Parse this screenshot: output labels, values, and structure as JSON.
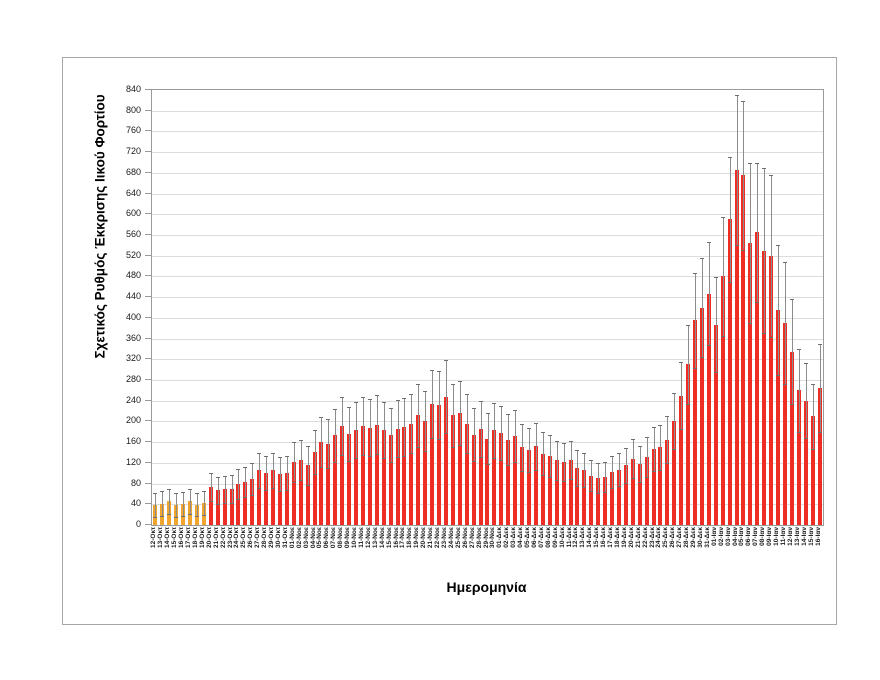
{
  "axis": {
    "y_title": "Σχετικός Ρυθμός Έκκρισης Ιικού Φορτίου",
    "x_title": "Ημερομηνία"
  },
  "colors": {
    "bar_red": "#ee2e24",
    "bar_orange": "#f0a52f",
    "error_bar": "#8c8c8c",
    "gridline": "#dcdcdc"
  },
  "chart_data": {
    "type": "bar",
    "title": "",
    "xlabel": "Ημερομηνία",
    "ylabel": "Σχετικός Ρυθμός Έκκρισης Ιικού Φορτίου",
    "ylim": [
      0,
      840
    ],
    "ytick_step": 40,
    "yticks": [
      0,
      40,
      80,
      120,
      160,
      200,
      240,
      280,
      320,
      360,
      400,
      440,
      480,
      520,
      560,
      600,
      640,
      680,
      720,
      760,
      800,
      840
    ],
    "grid": true,
    "legend": false,
    "orange_count": 8,
    "categories": [
      "12-Οκτ",
      "13-Οκτ",
      "14-Οκτ",
      "15-Οκτ",
      "16-Οκτ",
      "17-Οκτ",
      "18-Οκτ",
      "19-Οκτ",
      "20-Οκτ",
      "21-Οκτ",
      "22-Οκτ",
      "23-Οκτ",
      "24-Οκτ",
      "25-Οκτ",
      "26-Οκτ",
      "27-Οκτ",
      "28-Οκτ",
      "29-Οκτ",
      "30-Οκτ",
      "31-Οκτ",
      "01-Νοε",
      "02-Νοε",
      "03-Νοε",
      "04-Νοε",
      "05-Νοε",
      "06-Νοε",
      "07-Νοε",
      "08-Νοε",
      "09-Νοε",
      "10-Νοε",
      "11-Νοε",
      "12-Νοε",
      "13-Νοε",
      "14-Νοε",
      "15-Νοε",
      "16-Νοε",
      "17-Νοε",
      "18-Νοε",
      "19-Νοε",
      "20-Νοε",
      "21-Νοε",
      "22-Νοε",
      "23-Νοε",
      "24-Νοε",
      "25-Νοε",
      "26-Νοε",
      "27-Νοε",
      "28-Νοε",
      "29-Νοε",
      "30-Νοε",
      "01-Δεκ",
      "02-Δεκ",
      "03-Δεκ",
      "04-Δεκ",
      "05-Δεκ",
      "06-Δεκ",
      "07-Δεκ",
      "08-Δεκ",
      "09-Δεκ",
      "10-Δεκ",
      "11-Δεκ",
      "12-Δεκ",
      "13-Δεκ",
      "14-Δεκ",
      "15-Δεκ",
      "16-Δεκ",
      "17-Δεκ",
      "18-Δεκ",
      "19-Δεκ",
      "20-Δεκ",
      "21-Δεκ",
      "22-Δεκ",
      "23-Δεκ",
      "24-Δεκ",
      "25-Δεκ",
      "26-Δεκ",
      "27-Δεκ",
      "28-Δεκ",
      "29-Δεκ",
      "30-Δεκ",
      "31-Δεκ",
      "01-Ιαν",
      "02-Ιαν",
      "03-Ιαν",
      "04-Ιαν",
      "05-Ιαν",
      "06-Ιαν",
      "07-Ιαν",
      "08-Ιαν",
      "09-Ιαν",
      "10-Ιαν",
      "11-Ιαν",
      "12-Ιαν",
      "13-Ιαν",
      "14-Ιαν",
      "15-Ιαν",
      "16-Ιαν"
    ],
    "values": [
      39,
      41,
      46,
      39,
      41,
      46,
      39,
      42,
      73,
      67,
      69,
      69,
      80,
      83,
      88,
      106,
      101,
      106,
      99,
      101,
      122,
      126,
      115,
      141,
      160,
      157,
      173,
      192,
      176,
      183,
      192,
      188,
      194,
      183,
      174,
      186,
      190,
      196,
      212,
      200,
      234,
      232,
      248,
      212,
      217,
      196,
      174,
      186,
      167,
      183,
      178,
      165,
      172,
      150,
      145,
      152,
      138,
      133,
      125,
      122,
      125,
      110,
      107,
      95,
      90,
      93,
      102,
      107,
      115,
      128,
      118,
      131,
      147,
      150,
      165,
      200,
      250,
      310,
      395,
      420,
      447,
      387,
      480,
      590,
      685,
      675,
      545,
      565,
      530,
      520,
      415,
      390,
      335,
      260,
      240,
      210,
      265
    ],
    "error_upper": [
      62,
      65,
      70,
      62,
      64,
      70,
      61,
      65,
      100,
      93,
      95,
      96,
      109,
      112,
      119,
      140,
      134,
      140,
      132,
      134,
      160,
      165,
      152,
      184,
      208,
      204,
      224,
      248,
      228,
      237,
      248,
      243,
      251,
      237,
      226,
      241,
      246,
      253,
      273,
      258,
      300,
      298,
      318,
      273,
      279,
      253,
      225,
      240,
      216,
      236,
      230,
      214,
      222,
      195,
      188,
      197,
      180,
      173,
      163,
      159,
      162,
      144,
      140,
      125,
      119,
      122,
      133,
      139,
      149,
      166,
      153,
      169,
      189,
      193,
      211,
      254,
      315,
      387,
      487,
      515,
      546,
      478,
      595,
      710,
      830,
      818,
      700,
      700,
      690,
      676,
      540,
      508,
      436,
      340,
      312,
      273,
      350
    ]
  }
}
